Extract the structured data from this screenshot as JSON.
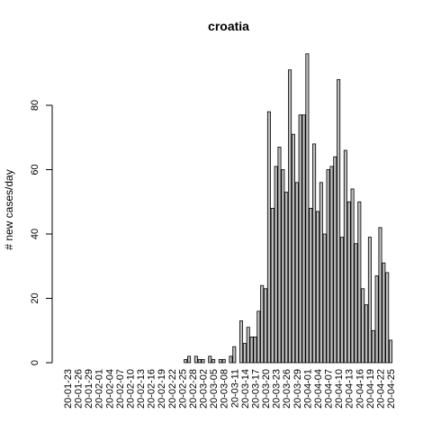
{
  "chart_data": {
    "type": "bar",
    "title": "croatia",
    "xlabel": "",
    "ylabel": "# new cases/day",
    "ylim": [
      0,
      100
    ],
    "yticks": [
      0,
      20,
      40,
      60,
      80
    ],
    "x_tick_labels": [
      "20-01-23",
      "20-01-26",
      "20-01-29",
      "20-02-01",
      "20-02-04",
      "20-02-07",
      "20-02-10",
      "20-02-13",
      "20-02-16",
      "20-02-19",
      "20-02-22",
      "20-02-25",
      "20-02-28",
      "20-03-02",
      "20-03-05",
      "20-03-08",
      "20-03-11",
      "20-03-14",
      "20-03-17",
      "20-03-20",
      "20-03-23",
      "20-03-26",
      "20-03-29",
      "20-04-01",
      "20-04-04",
      "20-04-07",
      "20-04-10",
      "20-04-13",
      "20-04-16",
      "20-04-19",
      "20-04-22",
      "20-04-25"
    ],
    "x_tick_every": 3,
    "start_date": "2020-01-23",
    "values": [
      0,
      0,
      0,
      0,
      0,
      0,
      0,
      0,
      0,
      0,
      0,
      0,
      0,
      0,
      0,
      0,
      0,
      0,
      0,
      0,
      0,
      0,
      0,
      0,
      0,
      0,
      0,
      0,
      0,
      0,
      0,
      0,
      0,
      0,
      1,
      2,
      0,
      2,
      1,
      1,
      0,
      2,
      1,
      0,
      1,
      1,
      0,
      2,
      5,
      0,
      13,
      6,
      11,
      8,
      8,
      16,
      24,
      23,
      78,
      48,
      61,
      67,
      60,
      53,
      91,
      71,
      56,
      77,
      77,
      96,
      48,
      68,
      47,
      56,
      40,
      60,
      61,
      64,
      88,
      39,
      66,
      50,
      54,
      37,
      50,
      23,
      18,
      39,
      10,
      27,
      42,
      31,
      28,
      7
    ],
    "grid": false,
    "legend": "none",
    "bar_color": "#bebebe"
  }
}
